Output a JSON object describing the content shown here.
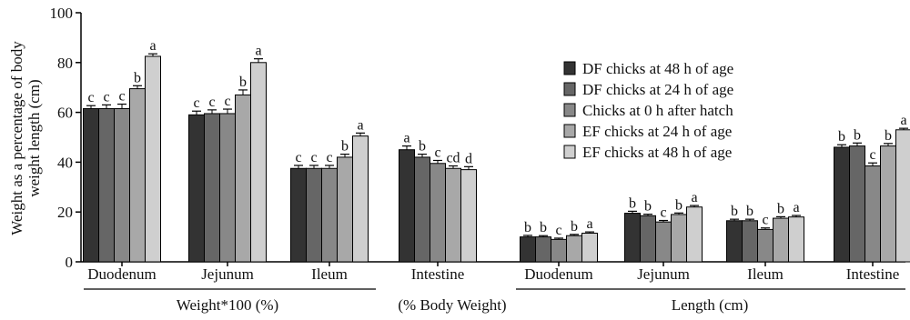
{
  "chart_data": {
    "type": "bar",
    "ylabel": "Weight as a percentage of body weight length (cm)",
    "ylabel_lines": [
      "Weight as a percentage of body",
      "weight length (cm)"
    ],
    "ylim": [
      0,
      100
    ],
    "yticks": [
      0,
      20,
      40,
      60,
      80,
      100
    ],
    "grid": false,
    "legend_position": "right",
    "categories": [
      "Duodenum",
      "Jejunum",
      "Ileum",
      "Intestine",
      "Duodenum",
      "Jejunum",
      "Ileum",
      "Intestine"
    ],
    "groups": [
      {
        "label": "Weight*100 (%)"
      },
      {
        "label": "(% Body Weight)"
      },
      {
        "label": "Length (cm)"
      }
    ],
    "series": [
      {
        "name": "DF chicks at 48 h of age",
        "color": "#333333",
        "values": [
          61.5,
          59.0,
          37.5,
          45.0,
          10.0,
          19.5,
          16.5,
          46.0
        ],
        "errors": [
          1.2,
          1.5,
          1.2,
          1.5,
          0.6,
          0.8,
          0.6,
          1.0
        ],
        "labels": [
          "c",
          "c",
          "c",
          "a",
          "b",
          "b",
          "b",
          "b"
        ]
      },
      {
        "name": "DF chicks at 24 h of age",
        "color": "#666666",
        "values": [
          61.5,
          59.5,
          37.5,
          42.0,
          10.0,
          18.5,
          16.5,
          46.5
        ],
        "errors": [
          1.5,
          1.5,
          1.2,
          1.2,
          0.5,
          0.6,
          0.6,
          1.2
        ],
        "labels": [
          "c",
          "c",
          "c",
          "b",
          "b",
          "b",
          "b",
          "b"
        ]
      },
      {
        "name": "Chicks at 0 h after hatch",
        "color": "#888888",
        "values": [
          61.5,
          59.5,
          37.5,
          39.5,
          9.0,
          16.0,
          13.0,
          38.5
        ],
        "errors": [
          1.8,
          1.8,
          1.2,
          1.2,
          0.5,
          0.6,
          0.6,
          1.2
        ],
        "labels": [
          "c",
          "c",
          "c",
          "c",
          "c",
          "c",
          "c",
          "c"
        ]
      },
      {
        "name": "EF chicks at 24 h of age",
        "color": "#a8a8a8",
        "values": [
          69.5,
          67.0,
          42.0,
          37.5,
          10.5,
          19.0,
          17.5,
          46.5
        ],
        "errors": [
          1.2,
          2.0,
          1.2,
          1.0,
          0.5,
          0.6,
          0.6,
          1.0
        ],
        "labels": [
          "b",
          "b",
          "b",
          "cd",
          "b",
          "b",
          "b",
          "b"
        ]
      },
      {
        "name": "EF chicks at 48 h of age",
        "color": "#cfcfcf",
        "values": [
          82.5,
          80.0,
          50.5,
          37.0,
          11.5,
          22.0,
          18.0,
          53.0
        ],
        "errors": [
          1.0,
          1.5,
          1.2,
          1.2,
          0.5,
          0.6,
          0.6,
          0.6
        ],
        "labels": [
          "a",
          "a",
          "a",
          "d",
          "a",
          "a",
          "a",
          "a"
        ]
      }
    ]
  }
}
